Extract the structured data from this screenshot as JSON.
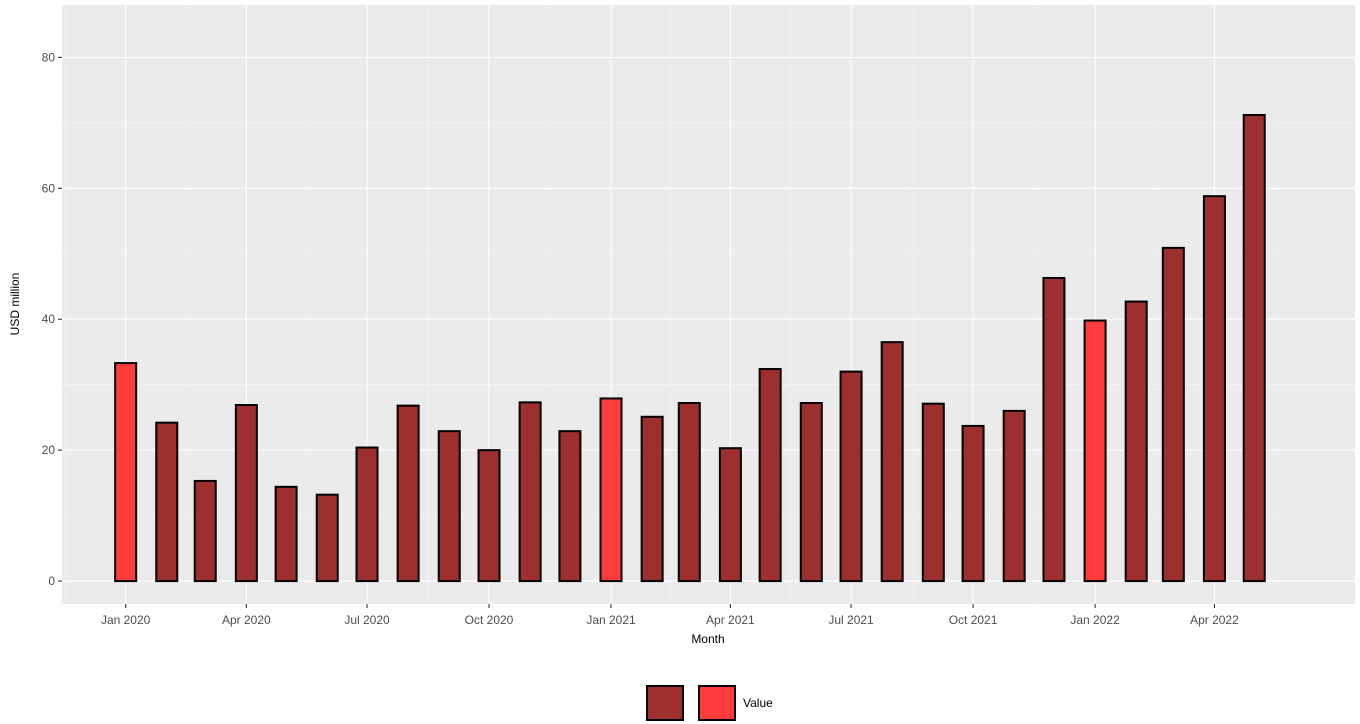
{
  "chart_data": {
    "type": "bar",
    "xlabel": "Month",
    "ylabel": "USD million",
    "ylim": [
      -3.5,
      88
    ],
    "yticks": [
      0,
      20,
      40,
      60,
      80
    ],
    "xticks": [
      {
        "date": "2020-01-01",
        "label": "Jan 2020"
      },
      {
        "date": "2020-04-01",
        "label": "Apr 2020"
      },
      {
        "date": "2020-07-01",
        "label": "Jul 2020"
      },
      {
        "date": "2020-10-01",
        "label": "Oct 2020"
      },
      {
        "date": "2021-01-01",
        "label": "Jan 2021"
      },
      {
        "date": "2021-04-01",
        "label": "Apr 2021"
      },
      {
        "date": "2021-07-01",
        "label": "Jul 2021"
      },
      {
        "date": "2021-10-01",
        "label": "Oct 2021"
      },
      {
        "date": "2022-01-01",
        "label": "Jan 2022"
      },
      {
        "date": "2022-04-01",
        "label": "Apr 2022"
      }
    ],
    "xlim": [
      "2019-11-14",
      "2022-07-16"
    ],
    "categories": [
      "2020-01",
      "2020-02",
      "2020-03",
      "2020-04",
      "2020-05",
      "2020-06",
      "2020-07",
      "2020-08",
      "2020-09",
      "2020-10",
      "2020-11",
      "2020-12",
      "2021-01",
      "2021-02",
      "2021-03",
      "2021-04",
      "2021-05",
      "2021-06",
      "2021-07",
      "2021-08",
      "2021-09",
      "2021-10",
      "2021-11",
      "2021-12",
      "2022-01",
      "2022-02",
      "2022-03",
      "2022-04",
      "2022-05"
    ],
    "values": [
      33.3,
      24.2,
      15.3,
      26.9,
      14.4,
      13.2,
      20.4,
      26.8,
      22.9,
      20.0,
      27.3,
      22.9,
      27.9,
      25.1,
      27.2,
      20.3,
      32.4,
      27.2,
      32.0,
      36.5,
      27.1,
      23.7,
      26.0,
      46.3,
      39.8,
      42.7,
      50.9,
      58.8,
      71.2
    ],
    "highlight": [
      true,
      false,
      false,
      false,
      false,
      false,
      false,
      false,
      false,
      false,
      false,
      false,
      true,
      false,
      false,
      false,
      false,
      false,
      false,
      false,
      false,
      false,
      false,
      false,
      true,
      false,
      false,
      false,
      false
    ],
    "grid": true,
    "legend": {
      "position": "bottom",
      "entries": [
        {
          "label": "",
          "color": "#9e2f2f"
        },
        {
          "label": "Value",
          "color": "#ff3b3b"
        }
      ]
    },
    "colors": {
      "panel": "#ebebeb",
      "grid_major": "#ffffff",
      "bar_normal": "#9e2f2f",
      "bar_highlight": "#ff3b3b",
      "bar_outline": "#000000"
    }
  }
}
